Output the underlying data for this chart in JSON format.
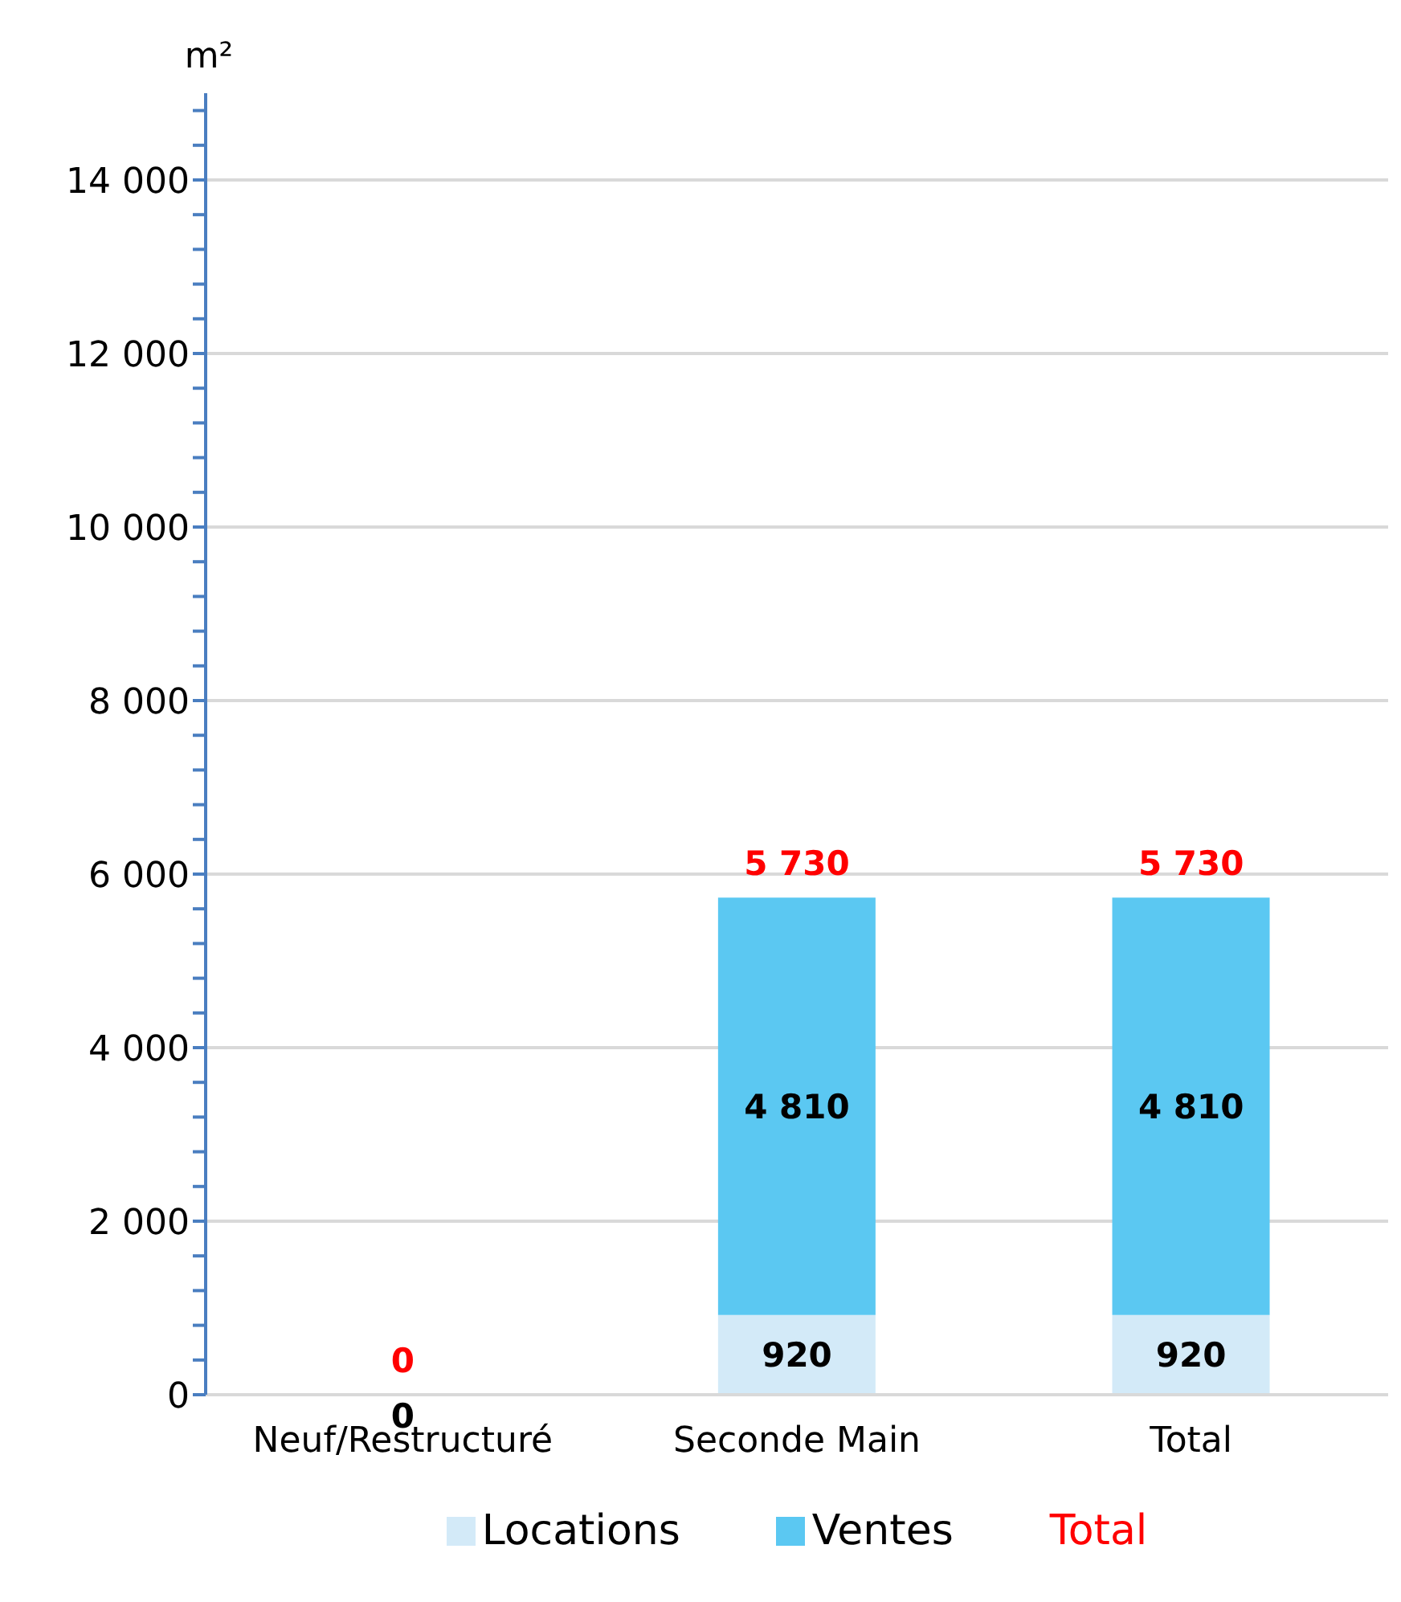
{
  "chart_data": {
    "type": "bar",
    "stacked": true,
    "ylabel": "m²",
    "categories": [
      "Neuf/Restructuré",
      "Seconde Main",
      "Total"
    ],
    "series": [
      {
        "name": "Locations",
        "color": "#d3eaf8",
        "values": [
          0,
          920,
          920
        ],
        "value_labels": [
          "0",
          "920",
          "920"
        ]
      },
      {
        "name": "Ventes",
        "color": "#5bc8f2",
        "values": [
          0,
          4810,
          4810
        ],
        "value_labels": [
          null,
          "4 810",
          "4 810"
        ]
      }
    ],
    "totals": [
      "0",
      "5 730",
      "5 730"
    ],
    "annotations": [
      "Total"
    ],
    "ylim": [
      0,
      15000
    ],
    "yticks": [
      {
        "value": 0,
        "label": "0"
      },
      {
        "value": 400,
        "label": null
      },
      {
        "value": 800,
        "label": null
      },
      {
        "value": 1200,
        "label": null
      },
      {
        "value": 1600,
        "label": null
      },
      {
        "value": 2000,
        "label": "2 000"
      },
      {
        "value": 2400,
        "label": null
      },
      {
        "value": 2800,
        "label": null
      },
      {
        "value": 3200,
        "label": null
      },
      {
        "value": 3600,
        "label": null
      },
      {
        "value": 4000,
        "label": "4 000"
      },
      {
        "value": 4400,
        "label": null
      },
      {
        "value": 4800,
        "label": null
      },
      {
        "value": 5200,
        "label": null
      },
      {
        "value": 5600,
        "label": null
      },
      {
        "value": 6000,
        "label": "6 000"
      },
      {
        "value": 6400,
        "label": null
      },
      {
        "value": 6800,
        "label": null
      },
      {
        "value": 7200,
        "label": null
      },
      {
        "value": 7600,
        "label": null
      },
      {
        "value": 8000,
        "label": "8 000"
      },
      {
        "value": 8400,
        "label": null
      },
      {
        "value": 8800,
        "label": null
      },
      {
        "value": 9200,
        "label": null
      },
      {
        "value": 9600,
        "label": null
      },
      {
        "value": 10000,
        "label": "10 000"
      },
      {
        "value": 10400,
        "label": null
      },
      {
        "value": 10800,
        "label": null
      },
      {
        "value": 11200,
        "label": null
      },
      {
        "value": 11600,
        "label": null
      },
      {
        "value": 12000,
        "label": "12 000"
      },
      {
        "value": 12400,
        "label": null
      },
      {
        "value": 12800,
        "label": null
      },
      {
        "value": 13200,
        "label": null
      },
      {
        "value": 13600,
        "label": null
      },
      {
        "value": 14000,
        "label": "14 000"
      },
      {
        "value": 14400,
        "label": null
      },
      {
        "value": 14800,
        "label": null
      }
    ],
    "grid": "y",
    "legend": "bottom"
  }
}
